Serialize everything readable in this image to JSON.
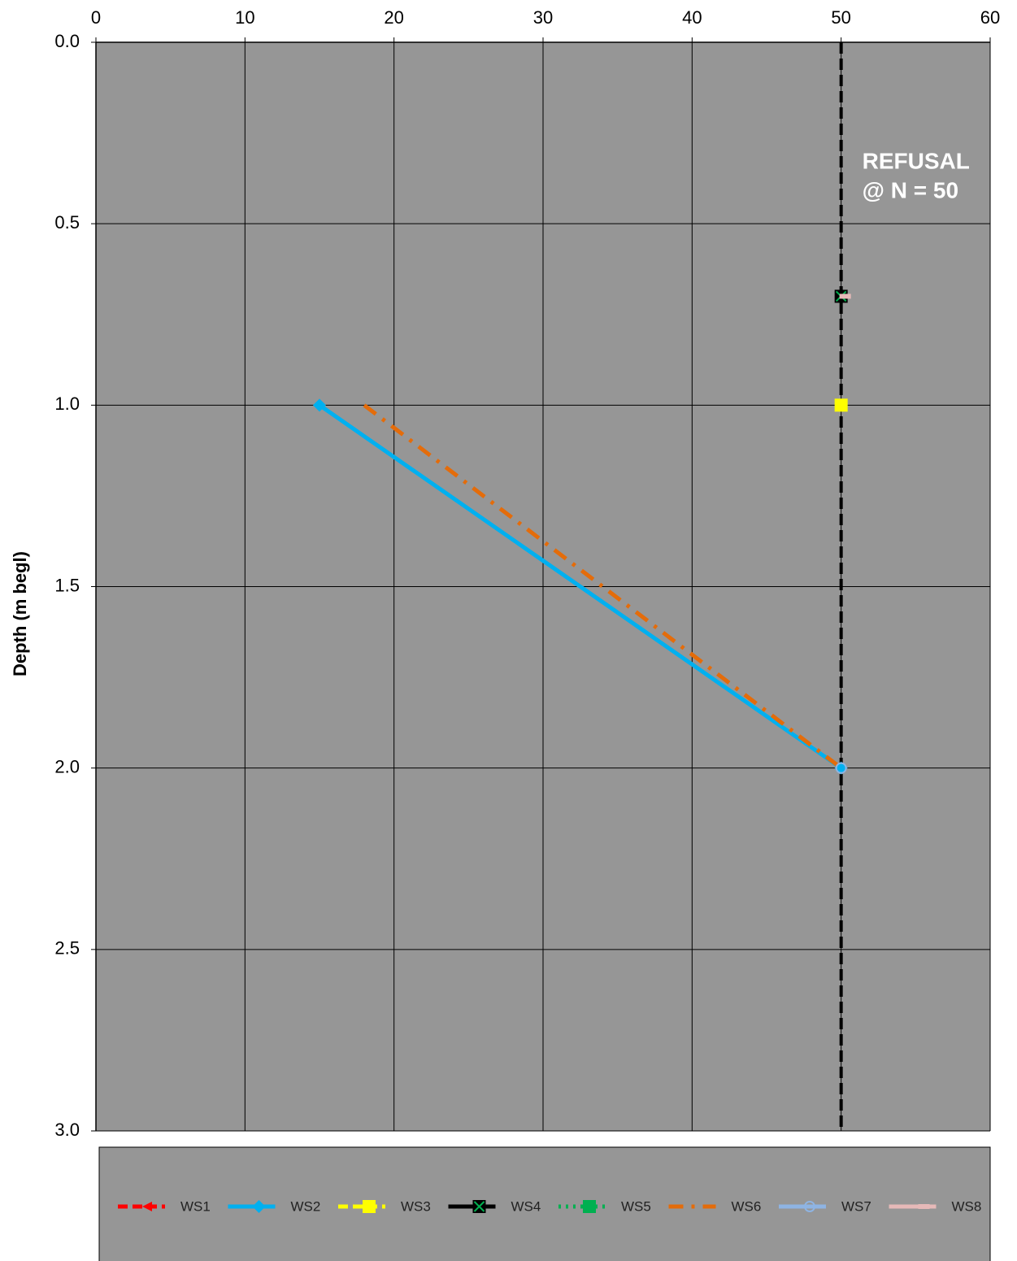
{
  "chart_data": {
    "type": "line",
    "y_label": "Depth (m begl)",
    "xlim": [
      0,
      60
    ],
    "xticks": [
      0,
      10,
      20,
      30,
      40,
      50,
      60
    ],
    "x_axis_position": "top",
    "ylim": [
      0,
      3
    ],
    "y_inverted": true,
    "yticks": [
      {
        "value": 0,
        "label": "0.0"
      },
      {
        "value": 0.5,
        "label": "0.5"
      },
      {
        "value": 1,
        "label": "1.0"
      },
      {
        "value": 1.5,
        "label": "1.5"
      },
      {
        "value": 2,
        "label": "2.0"
      },
      {
        "value": 2.5,
        "label": "2.5"
      },
      {
        "value": 3,
        "label": "3.0"
      }
    ],
    "grid": true,
    "background": "#969696",
    "legend": "bottom",
    "refusal": {
      "value": 50,
      "label": [
        "REFUSAL",
        "@ N = 50"
      ]
    },
    "series": [
      {
        "name": "WS1",
        "color": "#ff0000",
        "dash": "dashed",
        "marker": "arrow",
        "x": [],
        "values": []
      },
      {
        "name": "WS2",
        "color": "#00b0f0",
        "dash": "solid",
        "marker": "diamond",
        "x": [
          15,
          50
        ],
        "values": [
          1.0,
          2.0
        ]
      },
      {
        "name": "WS3",
        "color": "#ffff00",
        "dash": "dashed",
        "marker": "square",
        "x": [
          50
        ],
        "values": [
          1.0
        ]
      },
      {
        "name": "WS4",
        "color": "#000000",
        "dash": "solid",
        "marker": "x-square",
        "x": [
          50
        ],
        "values": [
          0.7
        ]
      },
      {
        "name": "WS5",
        "color": "#00b050",
        "dash": "dotted",
        "marker": "square",
        "x": [],
        "values": []
      },
      {
        "name": "WS6",
        "color": "#e46c0a",
        "dash": "dashdot",
        "marker": "none",
        "x": [
          18,
          50
        ],
        "values": [
          1.0,
          2.0
        ]
      },
      {
        "name": "WS7",
        "color": "#8eb4e3",
        "dash": "solid",
        "marker": "circle",
        "x": [
          50
        ],
        "values": [
          2.0
        ]
      },
      {
        "name": "WS8",
        "color": "#e6b9b8",
        "dash": "solid",
        "marker": "dash",
        "x": [
          50
        ],
        "values": [
          0.7
        ]
      }
    ]
  }
}
